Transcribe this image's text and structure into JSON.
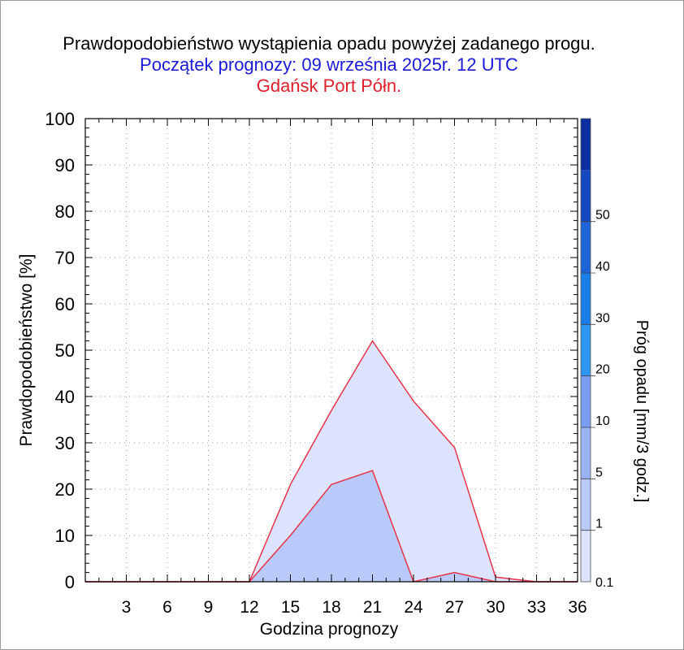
{
  "title": "Prawdopodobieństwo wystąpienia opadu powyżej zadanego progu.",
  "subtitle": "Początek prognozy: 09 września 2025r. 12 UTC",
  "station": "Gdańsk Port Półn.",
  "colors": {
    "title": "#000000",
    "subtitle": "#1a1ad8",
    "station": "#e0202c",
    "series_line": "#e8334a"
  },
  "chart_data": {
    "type": "area",
    "xlabel": "Godzina prognozy",
    "ylabel": "Prawdopodobieństwo [%]",
    "xlim": [
      0,
      36
    ],
    "ylim": [
      0,
      100
    ],
    "x_ticks": [
      "3",
      "6",
      "9",
      "12",
      "15",
      "18",
      "21",
      "24",
      "27",
      "30",
      "33",
      "36"
    ],
    "y_ticks": [
      "0",
      "10",
      "20",
      "30",
      "40",
      "50",
      "60",
      "70",
      "80",
      "90",
      "100"
    ],
    "grid": true,
    "x": [
      0,
      3,
      6,
      9,
      12,
      15,
      18,
      21,
      24,
      27,
      30,
      33,
      36
    ],
    "series": [
      {
        "threshold": "0.1",
        "color": "#dde3fc",
        "values": [
          0,
          0,
          0,
          0,
          0,
          21,
          37,
          52,
          39,
          29,
          1,
          0,
          0
        ]
      },
      {
        "threshold": "1",
        "color": "#b8c9fa",
        "values": [
          0,
          0,
          0,
          0,
          0,
          10,
          21,
          24,
          0,
          2,
          0,
          0,
          0
        ]
      }
    ],
    "colorbar": {
      "label": "Próg opadu [mm/3 godz.]",
      "labels": [
        "0.1",
        "1",
        "5",
        "10",
        "20",
        "30",
        "40",
        "50"
      ],
      "colors": [
        "#dde3fc",
        "#b8c9fa",
        "#99b3f5",
        "#7a9ef0",
        "#2e96f0",
        "#1a7ee8",
        "#1e64d8",
        "#1648c0",
        "#0b2fa0"
      ]
    }
  }
}
